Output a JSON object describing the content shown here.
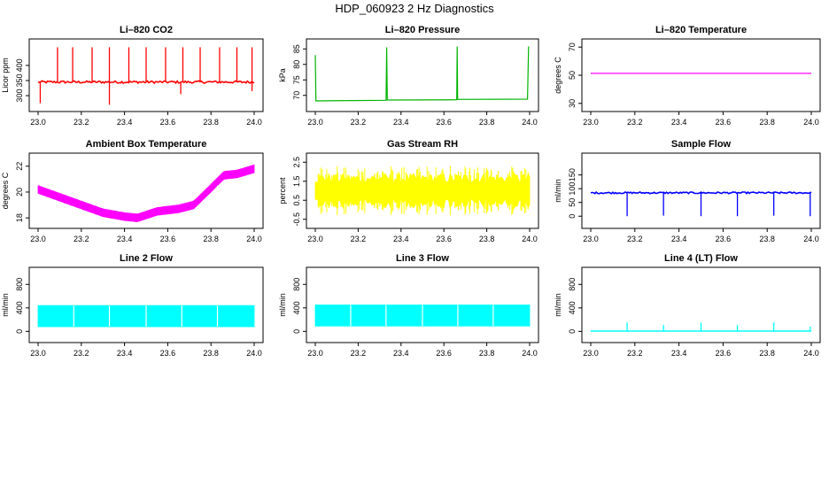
{
  "page": {
    "title": "HDP_060923  2 Hz Diagnostics"
  },
  "chart_data": [
    {
      "type": "line",
      "title": "Li–820 CO2",
      "ylabel": "Licor ppm",
      "xlabel": "",
      "xlim": [
        23.0,
        24.0
      ],
      "ylim": [
        265,
        470
      ],
      "xticks": [
        "23.0",
        "23.2",
        "23.4",
        "23.6",
        "23.8",
        "24.0"
      ],
      "yticks": [
        {
          "v": 300,
          "label": "300"
        },
        {
          "v": 350,
          "label": "350"
        },
        {
          "v": 400,
          "label": "400"
        }
      ],
      "series": [
        {
          "color": "#ff0000",
          "style": "noisy",
          "baseline": 345,
          "noise": 4,
          "spikes_up": [
            {
              "x": 23.09,
              "y": 460
            },
            {
              "x": 23.16,
              "y": 460
            },
            {
              "x": 23.25,
              "y": 460
            },
            {
              "x": 23.33,
              "y": 460
            },
            {
              "x": 23.42,
              "y": 460
            },
            {
              "x": 23.5,
              "y": 460
            },
            {
              "x": 23.59,
              "y": 460
            },
            {
              "x": 23.67,
              "y": 460
            },
            {
              "x": 23.75,
              "y": 460
            },
            {
              "x": 23.84,
              "y": 460
            },
            {
              "x": 23.92,
              "y": 460
            },
            {
              "x": 23.99,
              "y": 460
            }
          ],
          "spikes_down": [
            {
              "x": 23.01,
              "y": 275
            },
            {
              "x": 23.33,
              "y": 270
            },
            {
              "x": 23.66,
              "y": 305
            },
            {
              "x": 23.99,
              "y": 315
            }
          ]
        }
      ]
    },
    {
      "type": "line",
      "title": "Li–820 Pressure",
      "ylabel": "kPa",
      "xlabel": "",
      "xlim": [
        23.0,
        24.0
      ],
      "ylim": [
        66.5,
        86.5
      ],
      "xticks": [
        "23.0",
        "23.2",
        "23.4",
        "23.6",
        "23.8",
        "24.0"
      ],
      "yticks": [
        {
          "v": 70,
          "label": "70"
        },
        {
          "v": 75,
          "label": "75"
        },
        {
          "v": 80,
          "label": "80"
        },
        {
          "v": 85,
          "label": "85"
        }
      ],
      "series": [
        {
          "color": "#00b400",
          "style": "steps",
          "points": [
            [
              23.0,
              83
            ],
            [
              23.003,
              68.2
            ],
            [
              23.33,
              68.4
            ],
            [
              23.333,
              85.5
            ],
            [
              23.336,
              68.5
            ],
            [
              23.66,
              68.6
            ],
            [
              23.662,
              85.8
            ],
            [
              23.664,
              68.7
            ],
            [
              23.99,
              68.8
            ],
            [
              23.995,
              85.8
            ]
          ]
        }
      ]
    },
    {
      "type": "line",
      "title": "Li–820 Temperature",
      "ylabel": "degrees C",
      "xlabel": "",
      "xlim": [
        23.0,
        24.0
      ],
      "ylim": [
        28,
        72
      ],
      "xticks": [
        "23.0",
        "23.2",
        "23.4",
        "23.6",
        "23.8",
        "24.0"
      ],
      "yticks": [
        {
          "v": 30,
          "label": "30"
        },
        {
          "v": 50,
          "label": "50"
        },
        {
          "v": 70,
          "label": "70"
        }
      ],
      "series": [
        {
          "color": "#ff00ff",
          "style": "line",
          "points": [
            [
              23.0,
              51.3
            ],
            [
              24.0,
              51.3
            ]
          ]
        }
      ]
    },
    {
      "type": "line",
      "title": "Ambient Box Temperature",
      "ylabel": "degrees C",
      "xlabel": "",
      "xlim": [
        23.0,
        24.0
      ],
      "ylim": [
        17.6,
        22.6
      ],
      "xticks": [
        "23.0",
        "23.2",
        "23.4",
        "23.6",
        "23.8",
        "24.0"
      ],
      "yticks": [
        {
          "v": 18,
          "label": "18"
        },
        {
          "v": 20,
          "label": "20"
        },
        {
          "v": 22,
          "label": "22"
        }
      ],
      "series": [
        {
          "color": "#ff00ff",
          "style": "band",
          "halfwidth": 0.3,
          "points": [
            [
              23.0,
              20.2
            ],
            [
              23.1,
              19.6
            ],
            [
              23.2,
              19.0
            ],
            [
              23.3,
              18.4
            ],
            [
              23.4,
              18.1
            ],
            [
              23.46,
              18.0
            ],
            [
              23.55,
              18.5
            ],
            [
              23.65,
              18.7
            ],
            [
              23.72,
              19.0
            ],
            [
              23.8,
              20.3
            ],
            [
              23.86,
              21.3
            ],
            [
              23.92,
              21.4
            ],
            [
              24.0,
              21.8
            ]
          ]
        }
      ]
    },
    {
      "type": "line",
      "title": "Gas Stream RH",
      "ylabel": "percent",
      "xlabel": "",
      "xlim": [
        23.0,
        24.0
      ],
      "ylim": [
        -0.7,
        2.7
      ],
      "xticks": [
        "23.0",
        "23.2",
        "23.4",
        "23.6",
        "23.8",
        "24.0"
      ],
      "yticks": [
        {
          "v": -0.5,
          "label": "-0.5"
        },
        {
          "v": 0.5,
          "label": "0.5"
        },
        {
          "v": 1.5,
          "label": "1.5"
        },
        {
          "v": 2.5,
          "label": "2.5"
        }
      ],
      "series": [
        {
          "color": "#ffff00",
          "style": "band",
          "halfwidth": 0.65,
          "jitter": true,
          "points": [
            [
              23.0,
              1.0
            ],
            [
              24.0,
              1.0
            ]
          ]
        }
      ]
    },
    {
      "type": "line",
      "title": "Sample Flow",
      "ylabel": "ml/min",
      "xlabel": "",
      "xlim": [
        23.0,
        24.0
      ],
      "ylim": [
        -25,
        210
      ],
      "xticks": [
        "23.0",
        "23.2",
        "23.4",
        "23.6",
        "23.8",
        "24.0"
      ],
      "yticks": [
        {
          "v": 0,
          "label": "0"
        },
        {
          "v": 50,
          "label": "50"
        },
        {
          "v": 100,
          "label": "100"
        },
        {
          "v": 150,
          "label": "150"
        }
      ],
      "series": [
        {
          "color": "#0000ff",
          "style": "noisy",
          "baseline": 85,
          "noise": 3,
          "spikes_up": [],
          "spikes_down": [
            {
              "x": 23.165,
              "y": 0
            },
            {
              "x": 23.33,
              "y": 2
            },
            {
              "x": 23.5,
              "y": 0
            },
            {
              "x": 23.665,
              "y": 0
            },
            {
              "x": 23.83,
              "y": 2
            },
            {
              "x": 23.995,
              "y": 0
            }
          ]
        }
      ]
    },
    {
      "type": "line",
      "title": "Line 2 Flow",
      "ylabel": "ml/min",
      "xlabel": "",
      "xlim": [
        23.0,
        24.0
      ],
      "ylim": [
        -100,
        1000
      ],
      "xticks": [
        "23.0",
        "23.2",
        "23.4",
        "23.6",
        "23.8",
        "24.0"
      ],
      "yticks": [
        {
          "v": 0,
          "label": "0"
        },
        {
          "v": 400,
          "label": "400"
        },
        {
          "v": 800,
          "label": "800"
        }
      ],
      "series": [
        {
          "color": "#00ffff",
          "style": "band",
          "halfwidth": 180,
          "jitter": false,
          "points": [
            [
              23.0,
              260
            ],
            [
              24.0,
              260
            ]
          ]
        }
      ]
    },
    {
      "type": "line",
      "title": "Line 3 Flow",
      "ylabel": "ml/min",
      "xlabel": "",
      "xlim": [
        23.0,
        24.0
      ],
      "ylim": [
        -100,
        1000
      ],
      "xticks": [
        "23.0",
        "23.2",
        "23.4",
        "23.6",
        "23.8",
        "24.0"
      ],
      "yticks": [
        {
          "v": 0,
          "label": "0"
        },
        {
          "v": 400,
          "label": "400"
        },
        {
          "v": 800,
          "label": "800"
        }
      ],
      "series": [
        {
          "color": "#00ffff",
          "style": "band",
          "halfwidth": 180,
          "jitter": false,
          "points": [
            [
              23.0,
              270
            ],
            [
              24.0,
              270
            ]
          ]
        }
      ]
    },
    {
      "type": "line",
      "title": "Line 4 (LT) Flow",
      "ylabel": "ml/min",
      "xlabel": "",
      "xlim": [
        23.0,
        24.0
      ],
      "ylim": [
        -100,
        1000
      ],
      "xticks": [
        "23.0",
        "23.2",
        "23.4",
        "23.6",
        "23.8",
        "24.0"
      ],
      "yticks": [
        {
          "v": 0,
          "label": "0"
        },
        {
          "v": 400,
          "label": "400"
        },
        {
          "v": 800,
          "label": "800"
        }
      ],
      "series": [
        {
          "color": "#00ffff",
          "style": "noisy",
          "baseline": 5,
          "noise": 0,
          "spikes_up": [
            {
              "x": 23.165,
              "y": 150
            },
            {
              "x": 23.33,
              "y": 110
            },
            {
              "x": 23.5,
              "y": 150
            },
            {
              "x": 23.665,
              "y": 110
            },
            {
              "x": 23.83,
              "y": 150
            },
            {
              "x": 23.995,
              "y": 80
            }
          ],
          "spikes_down": []
        }
      ]
    }
  ]
}
